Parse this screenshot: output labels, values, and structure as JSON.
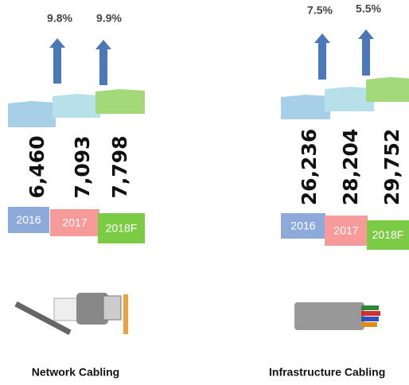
{
  "groups": [
    {
      "label": "Network Cabling",
      "growth": [
        "9.8%",
        "9.9%"
      ],
      "values": [
        "6,460",
        "7,093",
        "7,798"
      ],
      "years": [
        "2016",
        "2017",
        "2018F"
      ]
    },
    {
      "label": "Infrastructure Cabling",
      "growth": [
        "7.5%",
        "5.5%"
      ],
      "values": [
        "26,236",
        "28,204",
        "29,752"
      ],
      "years": [
        "2016",
        "2017",
        "2018F"
      ]
    }
  ]
}
